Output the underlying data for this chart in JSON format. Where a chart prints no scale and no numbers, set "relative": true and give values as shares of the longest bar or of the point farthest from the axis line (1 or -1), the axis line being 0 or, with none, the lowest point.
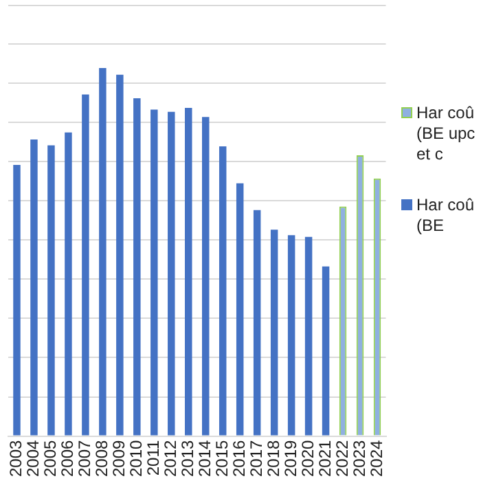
{
  "chart_data": {
    "type": "bar",
    "relative": true,
    "grid": "y",
    "legend": "right",
    "categories": [
      "2003",
      "2004",
      "2005",
      "2006",
      "2007",
      "2008",
      "2009",
      "2010",
      "2011",
      "2012",
      "2013",
      "2014",
      "2015",
      "2016",
      "2017",
      "2018",
      "2019",
      "2020",
      "2021",
      "2022",
      "2023",
      "2024"
    ],
    "series": [
      {
        "name": "Har coû (BE upc et c",
        "color": "#8fb0e0",
        "values": [
          null,
          null,
          null,
          null,
          null,
          null,
          null,
          null,
          null,
          null,
          null,
          null,
          null,
          null,
          null,
          null,
          null,
          null,
          null,
          0.624,
          0.763,
          0.7
        ]
      },
      {
        "name": "Har coû (BE",
        "color": "#4472c4",
        "values": [
          0.737,
          0.806,
          0.79,
          0.825,
          0.928,
          1,
          0.982,
          0.918,
          0.887,
          0.881,
          0.892,
          0.867,
          0.787,
          0.687,
          0.614,
          0.561,
          0.546,
          0.541,
          0.461,
          null,
          null,
          null
        ]
      }
    ]
  }
}
